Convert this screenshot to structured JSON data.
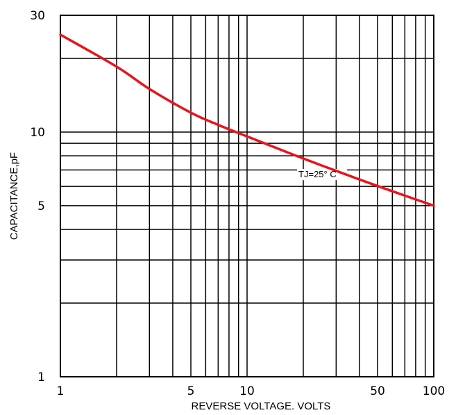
{
  "chart_data": {
    "type": "line",
    "xlabel": "REVERSE VOLTAGE. VOLTS",
    "ylabel": "CAPACITANCE,pF",
    "x_scale": "log",
    "y_scale": "log",
    "xlim": [
      1,
      100
    ],
    "ylim": [
      1,
      30
    ],
    "x_tick_labels": [
      {
        "value": 1,
        "label": "1"
      },
      {
        "value": 5,
        "label": "5"
      },
      {
        "value": 10,
        "label": "10"
      },
      {
        "value": 50,
        "label": "50"
      },
      {
        "value": 100,
        "label": "100"
      }
    ],
    "y_tick_labels": [
      {
        "value": 1,
        "label": "1"
      },
      {
        "value": 5,
        "label": "5"
      },
      {
        "value": 10,
        "label": "10"
      },
      {
        "value": 30,
        "label": "30"
      }
    ],
    "x_gridlines": [
      1,
      2,
      3,
      4,
      5,
      6,
      7,
      8,
      9,
      10,
      20,
      30,
      40,
      50,
      60,
      70,
      80,
      90,
      100
    ],
    "y_gridlines": [
      1,
      2,
      3,
      4,
      5,
      6,
      7,
      8,
      9,
      10,
      20,
      30
    ],
    "grid": true,
    "series": [
      {
        "color": "#e8141b",
        "x": [
          1,
          2,
          3,
          5,
          7,
          10,
          20,
          40,
          70,
          100
        ],
        "y": [
          25,
          18.5,
          15,
          12,
          10.7,
          9.6,
          7.8,
          6.4,
          5.5,
          5.0
        ]
      }
    ],
    "annotations": [
      {
        "text": "TJ=25° C",
        "x": 25,
        "y": 6.7
      }
    ]
  }
}
